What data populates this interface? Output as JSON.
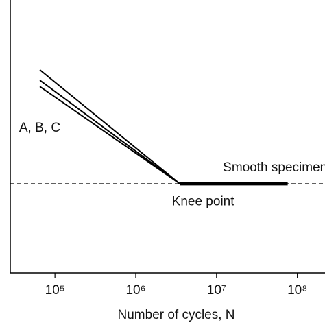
{
  "chart_data": {
    "type": "line",
    "log_x": true,
    "xlabel": "Number of cycles, N",
    "xlim": [
      28000,
      220000000
    ],
    "ylim": [
      0,
      100
    ],
    "xticks": [
      {
        "value": 100000,
        "label": "10⁵"
      },
      {
        "value": 1000000,
        "label": "10⁶"
      },
      {
        "value": 10000000,
        "label": "10⁷"
      },
      {
        "value": 100000000,
        "label": "10⁸"
      }
    ],
    "series": [
      {
        "color": "#000000",
        "x": [
          65000,
          3500000
        ],
        "values": [
          74.4,
          32.7
        ]
      },
      {
        "color": "#000000",
        "x": [
          65000,
          3500000
        ],
        "values": [
          70.6,
          32.7
        ]
      },
      {
        "color": "#000000",
        "x": [
          65000,
          3500000
        ],
        "values": [
          68.3,
          32.7
        ]
      },
      {
        "color": "#000000",
        "x": [
          3500000,
          76000000
        ],
        "values": [
          32.7,
          32.7
        ],
        "thick": true
      }
    ],
    "reference_line": {
      "y": 32.7,
      "dashed": true
    },
    "annotations": [
      {
        "text": "A, B, C",
        "x": 36000,
        "y": 53
      },
      {
        "text": "Smooth specimen",
        "x": 12000000,
        "y": 38.5
      },
      {
        "text": "Knee point",
        "x": 2800000,
        "y": 26
      }
    ]
  }
}
